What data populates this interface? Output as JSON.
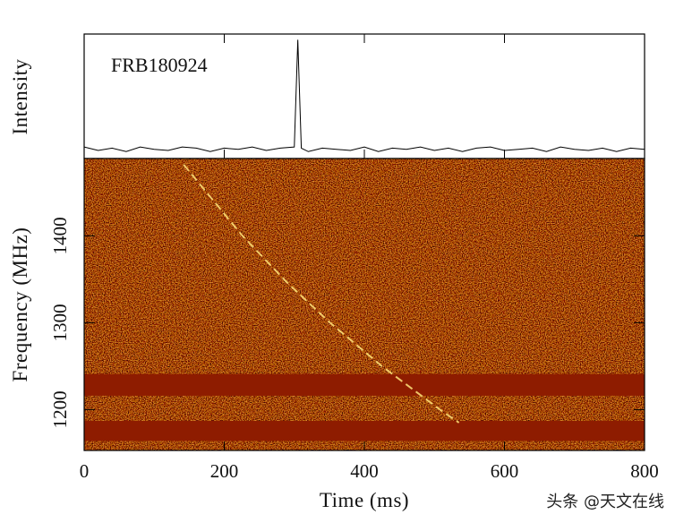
{
  "chart_data": [
    {
      "type": "line",
      "title": "FRB180924",
      "ylabel": "Intensity",
      "color": "#000000",
      "x": [
        0,
        20,
        40,
        60,
        80,
        100,
        120,
        140,
        160,
        180,
        200,
        220,
        240,
        260,
        280,
        300,
        305,
        310,
        320,
        340,
        360,
        380,
        400,
        420,
        440,
        460,
        480,
        500,
        520,
        540,
        560,
        580,
        600,
        620,
        640,
        660,
        680,
        700,
        720,
        740,
        760,
        780,
        800
      ],
      "values": [
        0.02,
        -0.01,
        0.01,
        -0.02,
        0.02,
        0.0,
        -0.01,
        0.02,
        0.01,
        -0.02,
        0.01,
        0.0,
        0.02,
        -0.01,
        0.01,
        0.02,
        0.95,
        0.01,
        -0.02,
        0.01,
        0.0,
        -0.01,
        0.02,
        -0.02,
        0.01,
        0.0,
        0.02,
        -0.01,
        0.01,
        -0.02,
        0.01,
        0.02,
        -0.01,
        0.0,
        0.01,
        -0.02,
        0.02,
        0.0,
        -0.01,
        0.01,
        -0.02,
        0.01,
        0.0
      ],
      "xlim": [
        0,
        800
      ],
      "ylim": [
        -0.08,
        1.0
      ]
    },
    {
      "type": "dynamic_spectrum",
      "xlabel": "Time (ms)",
      "ylabel": "Frequency (MHz)",
      "xlim": [
        0,
        800
      ],
      "ylim": [
        1153,
        1489
      ],
      "xticks": [
        0,
        200,
        400,
        600,
        800
      ],
      "yticks": [
        1200,
        1300,
        1400
      ],
      "sweep": {
        "color": "#ffe37a",
        "x": [
          142,
          226,
          290,
          351,
          425,
          508,
          535
        ],
        "y": [
          1482,
          1400,
          1346,
          1300,
          1250,
          1200,
          1185
        ]
      },
      "masked_bands": [
        [
          1216,
          1241
        ],
        [
          1164,
          1187
        ]
      ],
      "mask_color": "#8e1c00",
      "background_color": "#a8300a"
    }
  ],
  "watermark": "头条 @天文在线"
}
